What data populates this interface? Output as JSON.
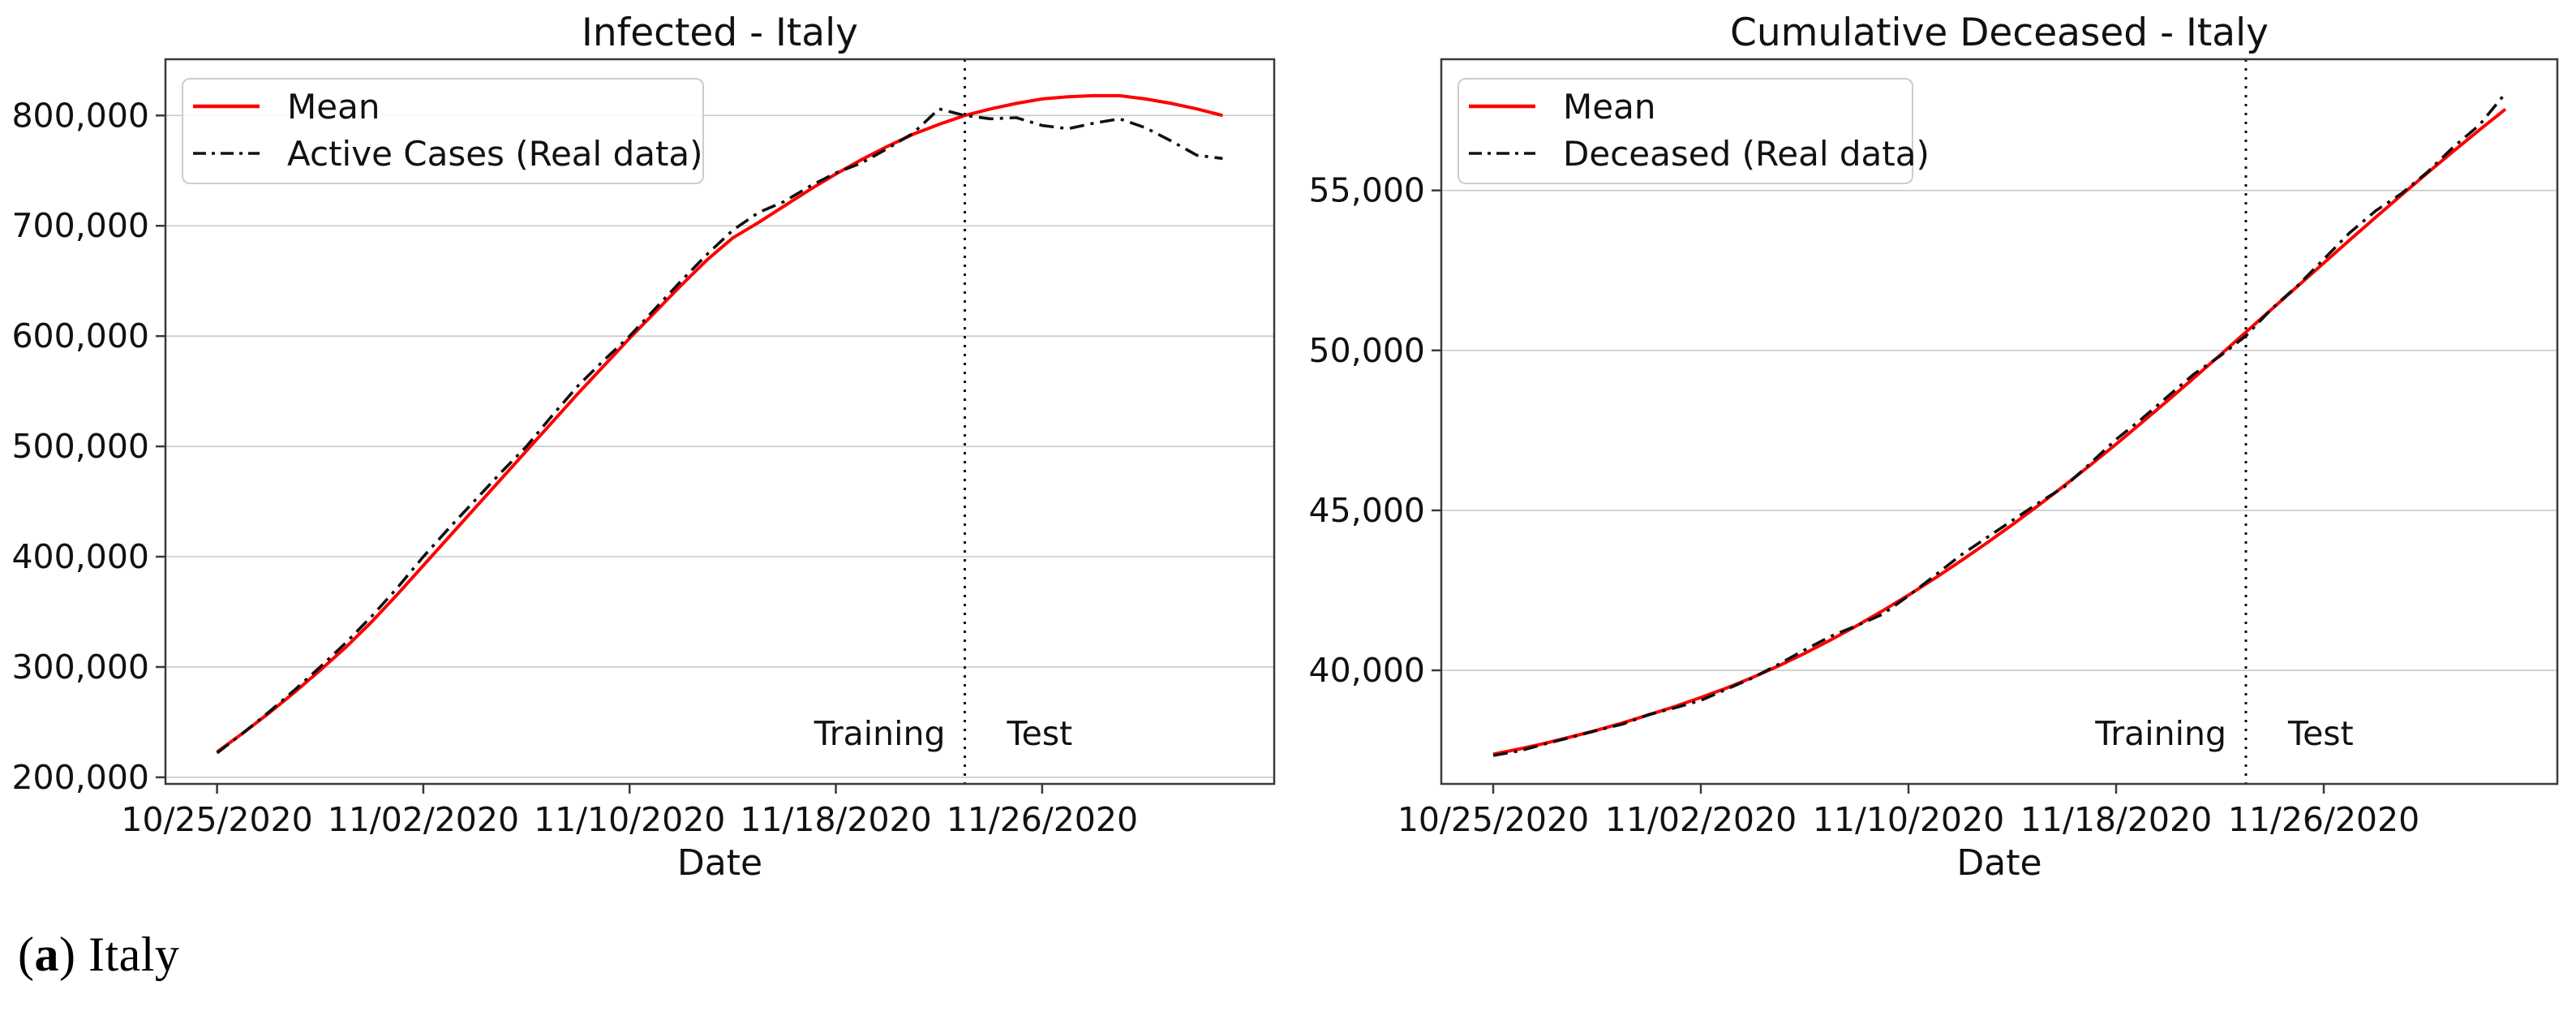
{
  "style": {
    "background": "#ffffff",
    "mean_color": "#ff0000",
    "real_color": "#111111",
    "grid_color": "#c9c9c9",
    "frame_color": "#3a3a3a",
    "text_color": "#111111",
    "legend_border": "#cccccc",
    "split_line_color": "#111111"
  },
  "caption": {
    "open": "(",
    "letter": "a",
    "rest": ") Italy"
  },
  "chart_data": [
    {
      "name": "infected-italy",
      "type": "line",
      "title": "Infected - Italy",
      "xlabel": "Date",
      "ylabel": "",
      "grid": "horizontal",
      "legend_position": "upper left",
      "x_tick_labels": [
        "10/25/2020",
        "11/02/2020",
        "11/10/2020",
        "11/18/2020",
        "11/26/2020"
      ],
      "x_tick_days": [
        0,
        8,
        16,
        24,
        32
      ],
      "xlim_days": [
        -2,
        41
      ],
      "ylim": [
        194000,
        851000
      ],
      "yticks": [
        200000,
        300000,
        400000,
        500000,
        600000,
        700000,
        800000
      ],
      "split_day": 29,
      "annotations": {
        "training": "Training",
        "test": "Test"
      },
      "dates": [
        "10/25/2020",
        "10/26/2020",
        "10/27/2020",
        "10/28/2020",
        "10/29/2020",
        "10/30/2020",
        "10/31/2020",
        "11/01/2020",
        "11/02/2020",
        "11/03/2020",
        "11/04/2020",
        "11/05/2020",
        "11/06/2020",
        "11/07/2020",
        "11/08/2020",
        "11/09/2020",
        "11/10/2020",
        "11/11/2020",
        "11/12/2020",
        "11/13/2020",
        "11/14/2020",
        "11/15/2020",
        "11/16/2020",
        "11/17/2020",
        "11/18/2020",
        "11/19/2020",
        "11/20/2020",
        "11/21/2020",
        "11/22/2020",
        "11/23/2020",
        "11/24/2020",
        "11/25/2020",
        "11/26/2020",
        "11/27/2020",
        "11/28/2020",
        "11/29/2020",
        "11/30/2020",
        "12/01/2020",
        "12/02/2020",
        "12/03/2020"
      ],
      "series": [
        {
          "name": "Mean",
          "style": "solid",
          "color": "#ff0000",
          "values": [
            223000,
            240000,
            258000,
            277000,
            297000,
            318000,
            341000,
            366000,
            392000,
            418000,
            444000,
            470000,
            496000,
            522000,
            548000,
            573000,
            598000,
            622000,
            646000,
            669000,
            689000,
            703000,
            718000,
            733000,
            747000,
            760000,
            772000,
            783000,
            792000,
            800000,
            806000,
            811000,
            815000,
            817000,
            818000,
            818000,
            815000,
            811000,
            806000,
            800000
          ]
        },
        {
          "name": "Active Cases (Real data)",
          "style": "dashdot",
          "color": "#111111",
          "values": [
            222000,
            240000,
            259000,
            279000,
            300000,
            322000,
            346000,
            372000,
            400000,
            426000,
            451000,
            476000,
            500000,
            528000,
            555000,
            578000,
            600000,
            625000,
            650000,
            674000,
            696000,
            712000,
            722000,
            736000,
            748000,
            757000,
            770000,
            784000,
            806000,
            800000,
            797000,
            798000,
            791000,
            788000,
            793000,
            797000,
            789000,
            777000,
            764000,
            761000
          ]
        }
      ]
    },
    {
      "name": "cumulative-deceased-italy",
      "type": "line",
      "title": "Cumulative Deceased - Italy",
      "xlabel": "Date",
      "ylabel": "",
      "grid": "horizontal",
      "legend_position": "upper left",
      "x_tick_labels": [
        "10/25/2020",
        "11/02/2020",
        "11/10/2020",
        "11/18/2020",
        "11/26/2020"
      ],
      "x_tick_days": [
        0,
        8,
        16,
        24,
        32
      ],
      "xlim_days": [
        -2,
        41
      ],
      "ylim": [
        36450,
        59100
      ],
      "yticks": [
        40000,
        45000,
        50000,
        55000
      ],
      "split_day": 29,
      "annotations": {
        "training": "Training",
        "test": "Test"
      },
      "dates": [
        "10/25/2020",
        "10/26/2020",
        "10/27/2020",
        "10/28/2020",
        "10/29/2020",
        "10/30/2020",
        "10/31/2020",
        "11/01/2020",
        "11/02/2020",
        "11/03/2020",
        "11/04/2020",
        "11/05/2020",
        "11/06/2020",
        "11/07/2020",
        "11/08/2020",
        "11/09/2020",
        "11/10/2020",
        "11/11/2020",
        "11/12/2020",
        "11/13/2020",
        "11/14/2020",
        "11/15/2020",
        "11/16/2020",
        "11/17/2020",
        "11/18/2020",
        "11/19/2020",
        "11/20/2020",
        "11/21/2020",
        "11/22/2020",
        "11/23/2020",
        "11/24/2020",
        "11/25/2020",
        "11/26/2020",
        "11/27/2020",
        "11/28/2020",
        "11/29/2020",
        "11/30/2020",
        "12/01/2020",
        "12/02/2020",
        "12/03/2020"
      ],
      "series": [
        {
          "name": "Mean",
          "style": "solid",
          "color": "#ff0000",
          "values": [
            37380,
            37540,
            37720,
            37920,
            38130,
            38360,
            38610,
            38870,
            39150,
            39450,
            39780,
            40140,
            40530,
            40950,
            41390,
            41860,
            42350,
            42870,
            43410,
            43970,
            44550,
            45150,
            45770,
            46410,
            47070,
            47750,
            48440,
            49140,
            49850,
            50570,
            51290,
            52010,
            52730,
            53450,
            54160,
            54860,
            55550,
            56230,
            56890,
            57540
          ]
        },
        {
          "name": "Deceased (Real data)",
          "style": "dashdot",
          "color": "#111111",
          "values": [
            37338,
            37479,
            37700,
            37905,
            38122,
            38321,
            38618,
            38826,
            39059,
            39412,
            39764,
            40192,
            40638,
            41063,
            41394,
            41750,
            42330,
            42953,
            43589,
            44139,
            44683,
            45229,
            45733,
            46464,
            47217,
            47870,
            48569,
            49261,
            49823,
            50453,
            51306,
            52028,
            52850,
            53677,
            54363,
            54904,
            55576,
            56361,
            57045,
            58038
          ]
        }
      ]
    }
  ]
}
